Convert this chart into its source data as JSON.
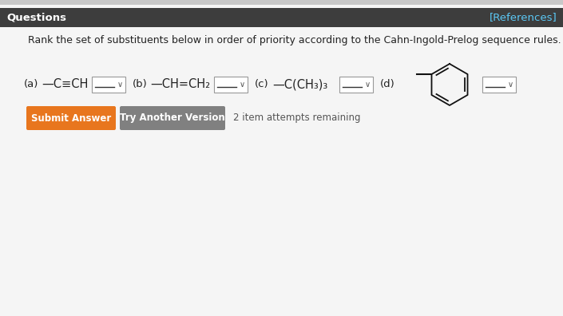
{
  "header_bg": "#3d3d3d",
  "header_text": "Questions",
  "header_ref": "[References]",
  "header_ref_color": "#5bc8f5",
  "header_text_color": "#ffffff",
  "body_bg": "#f5f5f5",
  "question_text": "Rank the set of substituents below in order of priority according to the Cahn-Ingold-Prelog sequence rules.",
  "label_a": "(a)",
  "chem_a": "—C≡CH",
  "label_b": "(b)",
  "chem_b": "—CH=CH₂",
  "label_c": "(c)",
  "chem_c": "—C(CH₃)₃",
  "label_d": "(d)",
  "btn1_text": "Submit Answer",
  "btn1_color": "#e8761e",
  "btn2_text": "Try Another Version",
  "btn2_color": "#808080",
  "attempts_text": "2 item attempts remaining",
  "text_color": "#222222",
  "dropdown_bg": "#ffffff",
  "dropdown_border": "#999999",
  "top_bar_bg": "#c8c8c8"
}
